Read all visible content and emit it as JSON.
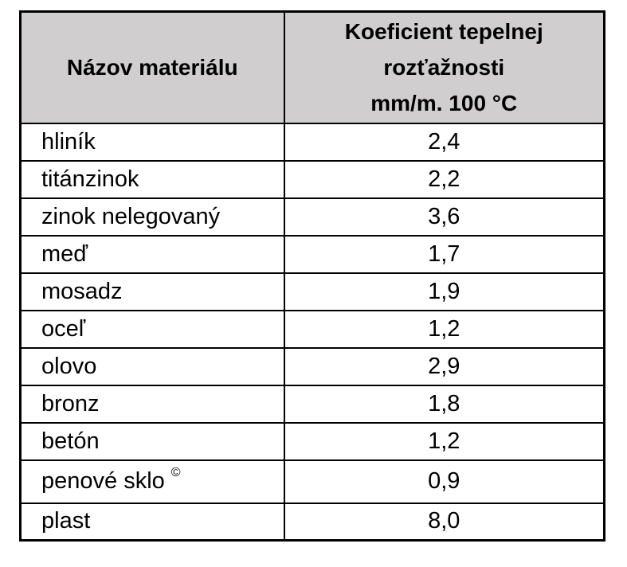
{
  "page": {
    "background": "#ffffff",
    "text_color": "#000000",
    "border_color": "#000000"
  },
  "table": {
    "header": {
      "col1": "Názov materiálu",
      "col2": "Koeficient tepelnej\nrozťažnosti\nmm/m. 100 °C",
      "background": "#d0cece"
    },
    "rows": [
      {
        "material": "hliník",
        "value": "2,4"
      },
      {
        "material": "titánzinok",
        "value": "2,2"
      },
      {
        "material": "zinok nelegovaný",
        "value": "3,6"
      },
      {
        "material": "meď",
        "value": "1,7"
      },
      {
        "material": "mosadz",
        "value": "1,9"
      },
      {
        "material": "oceľ",
        "value": "1,2"
      },
      {
        "material": "olovo",
        "value": "2,9"
      },
      {
        "material": "bronz",
        "value": "1,8"
      },
      {
        "material": "betón",
        "value": "1,2"
      },
      {
        "material": "penové sklo",
        "material_sup": "©",
        "value": "0,9"
      },
      {
        "material": "plast",
        "value": "8,0"
      }
    ]
  }
}
